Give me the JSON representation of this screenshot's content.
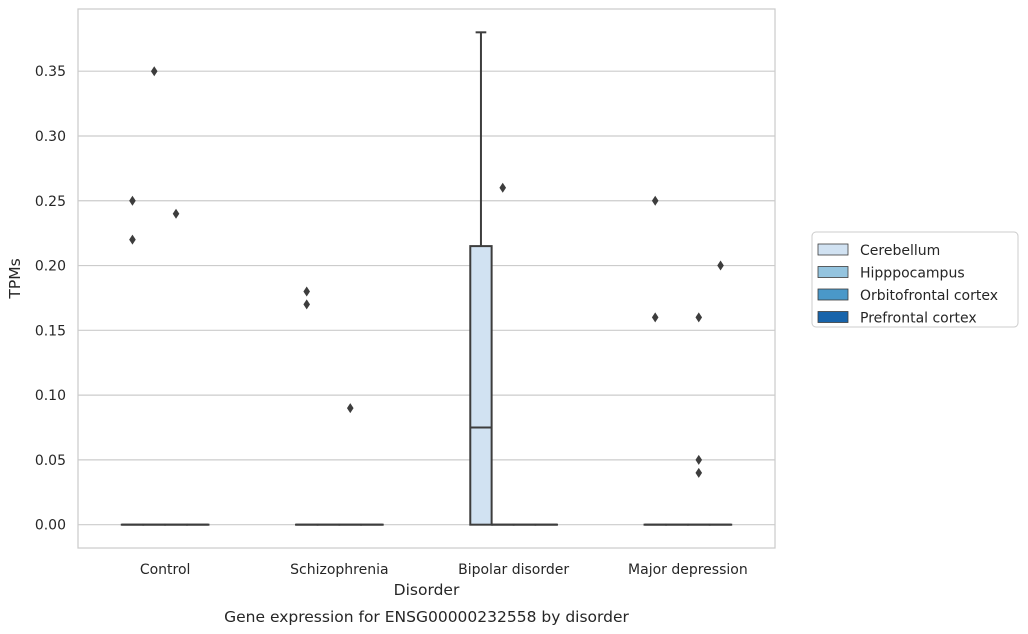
{
  "caption": "Gene expression for ENSG00000232558 by disorder",
  "chart_data": {
    "type": "box",
    "title": "",
    "xlabel": "Disorder",
    "ylabel": "TPMs",
    "categories": [
      "Control",
      "Schizophrenia",
      "Bipolar disorder",
      "Major depression"
    ],
    "hue_order": [
      "Cerebellum",
      "Hipppocampus",
      "Orbitofrontal cortex",
      "Prefrontal cortex"
    ],
    "colors": {
      "Cerebellum": "#d1e2f2",
      "Hipppocampus": "#94c4df",
      "Orbitofrontal cortex": "#4a98c9",
      "Prefrontal cortex": "#1764ab",
      "line": "#3d3d3d",
      "grid": "#cccccc"
    },
    "ylim": [
      -0.018,
      0.398
    ],
    "yticks": [
      0.0,
      0.05,
      0.1,
      0.15,
      0.2,
      0.25,
      0.3,
      0.35
    ],
    "ytick_labels": [
      "0.00",
      "0.05",
      "0.10",
      "0.15",
      "0.20",
      "0.25",
      "0.30",
      "0.35"
    ],
    "grid": true,
    "legend_position": "right",
    "boxes": [
      {
        "category": "Control",
        "hue": "Cerebellum",
        "q1": 0,
        "median": 0,
        "q3": 0,
        "whisker_low": 0,
        "whisker_high": 0,
        "outliers": [
          0.22,
          0.25
        ]
      },
      {
        "category": "Control",
        "hue": "Hipppocampus",
        "q1": 0,
        "median": 0,
        "q3": 0,
        "whisker_low": 0,
        "whisker_high": 0,
        "outliers": [
          0.35
        ]
      },
      {
        "category": "Control",
        "hue": "Orbitofrontal cortex",
        "q1": 0,
        "median": 0,
        "q3": 0,
        "whisker_low": 0,
        "whisker_high": 0,
        "outliers": [
          0.24
        ]
      },
      {
        "category": "Control",
        "hue": "Prefrontal cortex",
        "q1": 0,
        "median": 0,
        "q3": 0,
        "whisker_low": 0,
        "whisker_high": 0,
        "outliers": []
      },
      {
        "category": "Schizophrenia",
        "hue": "Cerebellum",
        "q1": 0,
        "median": 0,
        "q3": 0,
        "whisker_low": 0,
        "whisker_high": 0,
        "outliers": [
          0.17,
          0.18
        ]
      },
      {
        "category": "Schizophrenia",
        "hue": "Hipppocampus",
        "q1": 0,
        "median": 0,
        "q3": 0,
        "whisker_low": 0,
        "whisker_high": 0,
        "outliers": []
      },
      {
        "category": "Schizophrenia",
        "hue": "Orbitofrontal cortex",
        "q1": 0,
        "median": 0,
        "q3": 0,
        "whisker_low": 0,
        "whisker_high": 0,
        "outliers": [
          0.09
        ]
      },
      {
        "category": "Schizophrenia",
        "hue": "Prefrontal cortex",
        "q1": 0,
        "median": 0,
        "q3": 0,
        "whisker_low": 0,
        "whisker_high": 0,
        "outliers": []
      },
      {
        "category": "Bipolar disorder",
        "hue": "Cerebellum",
        "q1": 0,
        "median": 0.075,
        "q3": 0.215,
        "whisker_low": 0,
        "whisker_high": 0.38,
        "outliers": []
      },
      {
        "category": "Bipolar disorder",
        "hue": "Hipppocampus",
        "q1": 0,
        "median": 0,
        "q3": 0,
        "whisker_low": 0,
        "whisker_high": 0,
        "outliers": [
          0.26
        ]
      },
      {
        "category": "Bipolar disorder",
        "hue": "Orbitofrontal cortex",
        "q1": 0,
        "median": 0,
        "q3": 0,
        "whisker_low": 0,
        "whisker_high": 0,
        "outliers": []
      },
      {
        "category": "Bipolar disorder",
        "hue": "Prefrontal cortex",
        "q1": 0,
        "median": 0,
        "q3": 0,
        "whisker_low": 0,
        "whisker_high": 0,
        "outliers": []
      },
      {
        "category": "Major depression",
        "hue": "Cerebellum",
        "q1": 0,
        "median": 0,
        "q3": 0,
        "whisker_low": 0,
        "whisker_high": 0,
        "outliers": [
          0.16,
          0.25
        ]
      },
      {
        "category": "Major depression",
        "hue": "Hipppocampus",
        "q1": 0,
        "median": 0,
        "q3": 0,
        "whisker_low": 0,
        "whisker_high": 0,
        "outliers": []
      },
      {
        "category": "Major depression",
        "hue": "Orbitofrontal cortex",
        "q1": 0,
        "median": 0,
        "q3": 0,
        "whisker_low": 0,
        "whisker_high": 0,
        "outliers": [
          0.04,
          0.05,
          0.16
        ]
      },
      {
        "category": "Major depression",
        "hue": "Prefrontal cortex",
        "q1": 0,
        "median": 0,
        "q3": 0,
        "whisker_low": 0,
        "whisker_high": 0,
        "outliers": [
          0.2
        ]
      }
    ]
  }
}
